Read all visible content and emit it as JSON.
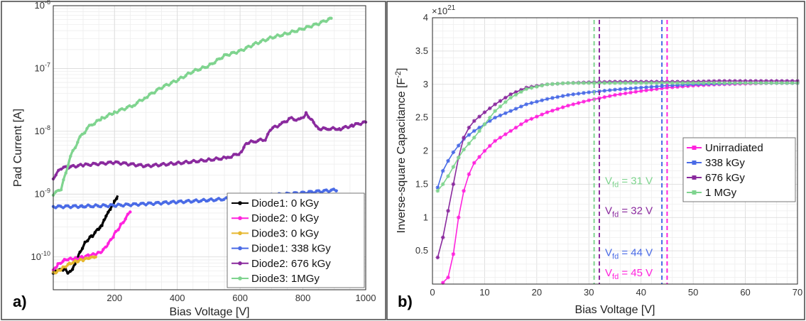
{
  "panels": {
    "a": {
      "tag": "a)"
    },
    "b": {
      "tag": "b)"
    }
  },
  "chart_data": [
    {
      "type": "scatter",
      "panel": "a)",
      "xlabel": "Bias Voltage [V]",
      "ylabel": "Pad Current [A]",
      "xlim": [
        5,
        1000
      ],
      "ylim": [
        3e-11,
        1e-06
      ],
      "yscale": "log",
      "xticks": [
        200,
        400,
        600,
        800,
        1000
      ],
      "yticks": [
        {
          "value": 1e-10,
          "label_base": "10",
          "label_exp": "-10"
        },
        {
          "value": 1e-09,
          "label_base": "10",
          "label_exp": "-9"
        },
        {
          "value": 1e-08,
          "label_base": "10",
          "label_exp": "-8"
        },
        {
          "value": 1e-07,
          "label_base": "10",
          "label_exp": "-7"
        },
        {
          "value": 1e-06,
          "label_base": "10",
          "label_exp": "-6"
        }
      ],
      "grid": true,
      "legend": "bottom-right",
      "series": [
        {
          "name": "Diode1: 0 kGy",
          "color": "#000000",
          "x": [
            5,
            20,
            40,
            55,
            70,
            90,
            110,
            130,
            150,
            160,
            170,
            180,
            190,
            200,
            210
          ],
          "y": [
            5.5e-11,
            6e-11,
            6.5e-11,
            5.5e-11,
            7e-11,
            1.2e-10,
            1.8e-10,
            2.2e-10,
            2.8e-10,
            3.2e-10,
            4e-10,
            5e-10,
            6e-10,
            7.5e-10,
            9.5e-10
          ]
        },
        {
          "name": "Diode2: 0 kGy",
          "color": "#ff22dd",
          "x": [
            5,
            20,
            40,
            60,
            80,
            100,
            120,
            140,
            160,
            180,
            200,
            220,
            250
          ],
          "y": [
            6e-11,
            7.5e-11,
            9e-11,
            9.5e-11,
            9.5e-11,
            1e-10,
            1.05e-10,
            1.1e-10,
            1.2e-10,
            1.6e-10,
            2.3e-10,
            3.2e-10,
            5.2e-10
          ]
        },
        {
          "name": "Diode3: 0 kGy",
          "color": "#e6b830",
          "x": [
            5,
            20,
            40,
            60,
            80,
            100,
            120,
            140
          ],
          "y": [
            5.5e-11,
            6e-11,
            7e-11,
            8e-11,
            8.5e-11,
            9e-11,
            9.5e-11,
            1e-10
          ]
        },
        {
          "name": "Diode1: 338 kGy",
          "color": "#4a6be6",
          "x": [
            5,
            100,
            200,
            300,
            400,
            500,
            600,
            700,
            800,
            910
          ],
          "y": [
            6.3e-10,
            6.4e-10,
            6.6e-10,
            7e-10,
            7.5e-10,
            8e-10,
            8.7e-10,
            9.6e-10,
            1.05e-09,
            1.17e-09
          ]
        },
        {
          "name": "Diode2: 676 kGy",
          "color": "#8a2a9e",
          "x": [
            5,
            30,
            100,
            200,
            300,
            400,
            500,
            560,
            600,
            620,
            650,
            680,
            700,
            730,
            760,
            790,
            810,
            830,
            850,
            880,
            920,
            960,
            1000
          ],
          "y": [
            1.8e-09,
            2.6e-09,
            2.9e-09,
            3.2e-09,
            2.8e-09,
            3.1e-09,
            3.5e-09,
            3.8e-09,
            4.5e-09,
            6.5e-09,
            7e-09,
            7.5e-09,
            1.1e-08,
            1.3e-08,
            1.6e-08,
            1.5e-08,
            1.9e-08,
            1.5e-08,
            1.1e-08,
            1.1e-08,
            1.1e-08,
            1.25e-08,
            1.4e-08
          ]
        },
        {
          "name": "Diode3: 1MGy",
          "color": "#7fd48f",
          "x": [
            5,
            30,
            60,
            90,
            120,
            160,
            200,
            260,
            300,
            350,
            400,
            450,
            500,
            550,
            600,
            650,
            700,
            750,
            800,
            850,
            890
          ],
          "y": [
            1e-09,
            1.2e-09,
            4e-09,
            8e-09,
            1.2e-08,
            1.6e-08,
            2e-08,
            2.6e-08,
            3.5e-08,
            5e-08,
            6.5e-08,
            9e-08,
            1.1e-07,
            1.6e-07,
            1.9e-07,
            2.5e-07,
            3.1e-07,
            3.6e-07,
            4.3e-07,
            5.2e-07,
            6.3e-07
          ]
        }
      ]
    },
    {
      "type": "line",
      "panel": "b)",
      "xlabel": "Bias Voltage [V]",
      "ylabel_prefix": "Inverse-square Capacitance [F",
      "ylabel_exp": "-2",
      "ylabel_suffix": "]",
      "scale_base": "×10",
      "scale_exp": "21",
      "xlim": [
        0,
        70
      ],
      "ylim": [
        0,
        4
      ],
      "xticks": [
        0,
        10,
        20,
        30,
        40,
        50,
        60,
        70
      ],
      "yticks": [
        0.5,
        1,
        1.5,
        2,
        2.5,
        3,
        3.5,
        4
      ],
      "grid": true,
      "legend": "right",
      "series": [
        {
          "name": "Unirradiated",
          "color": "#ff22dd",
          "x": [
            2,
            3,
            4,
            5,
            6,
            7,
            8,
            10,
            12,
            15,
            18,
            22,
            26,
            30,
            35,
            40,
            45,
            50,
            55,
            60,
            65,
            70
          ],
          "y": [
            0.02,
            0.1,
            0.45,
            1.0,
            1.4,
            1.65,
            1.82,
            2.0,
            2.15,
            2.3,
            2.45,
            2.58,
            2.68,
            2.76,
            2.84,
            2.9,
            2.95,
            2.98,
            3.0,
            3.01,
            3.02,
            3.02
          ]
        },
        {
          "name": "338 kGy",
          "color": "#4a6be6",
          "x": [
            1,
            2,
            3,
            4,
            5,
            6,
            8,
            10,
            12,
            15,
            18,
            22,
            26,
            30,
            35,
            40,
            45,
            50,
            55,
            60,
            65,
            70
          ],
          "y": [
            1.45,
            1.7,
            1.85,
            1.98,
            2.08,
            2.18,
            2.3,
            2.4,
            2.5,
            2.6,
            2.7,
            2.78,
            2.84,
            2.88,
            2.92,
            2.95,
            2.98,
            3.0,
            3.01,
            3.02,
            3.02,
            3.02
          ]
        },
        {
          "name": "676 kGy",
          "color": "#8a2a9e",
          "x": [
            1,
            2,
            3,
            4,
            5,
            6,
            7,
            8,
            10,
            12,
            15,
            18,
            22,
            26,
            30,
            35,
            40,
            45,
            50,
            55,
            60,
            65,
            70
          ],
          "y": [
            0.4,
            0.7,
            1.1,
            1.5,
            1.9,
            2.2,
            2.35,
            2.45,
            2.58,
            2.7,
            2.85,
            2.95,
            3.0,
            3.02,
            3.03,
            3.04,
            3.04,
            3.04,
            3.04,
            3.05,
            3.05,
            3.05,
            3.05
          ]
        },
        {
          "name": "1 MGy",
          "color": "#7fd48f",
          "x": [
            1,
            2,
            3,
            4,
            5,
            6,
            8,
            10,
            12,
            15,
            18,
            22,
            26,
            30,
            35,
            40,
            45,
            50,
            55,
            60,
            65,
            70
          ],
          "y": [
            1.4,
            1.5,
            1.62,
            1.76,
            1.9,
            2.02,
            2.2,
            2.4,
            2.6,
            2.8,
            2.93,
            3.0,
            3.02,
            3.02,
            3.02,
            3.02,
            3.02,
            3.02,
            3.02,
            3.02,
            3.02,
            3.02
          ]
        }
      ],
      "vlines": [
        {
          "x": 31,
          "color": "#7fd48f",
          "label_base": "V",
          "label_sub": "fd",
          "label_value": " = 31 V",
          "label_y": 1.5
        },
        {
          "x": 32,
          "color": "#8a2a9e",
          "label_base": "V",
          "label_sub": "fd",
          "label_value": " = 32 V",
          "label_y": 1.05
        },
        {
          "x": 44,
          "color": "#4a6be6",
          "label_base": "V",
          "label_sub": "fd",
          "label_value": " = 44 V",
          "label_y": 0.42
        },
        {
          "x": 45,
          "color": "#ff22dd",
          "label_base": "V",
          "label_sub": "fd",
          "label_value": " = 45 V",
          "label_y": 0.12
        }
      ]
    }
  ]
}
